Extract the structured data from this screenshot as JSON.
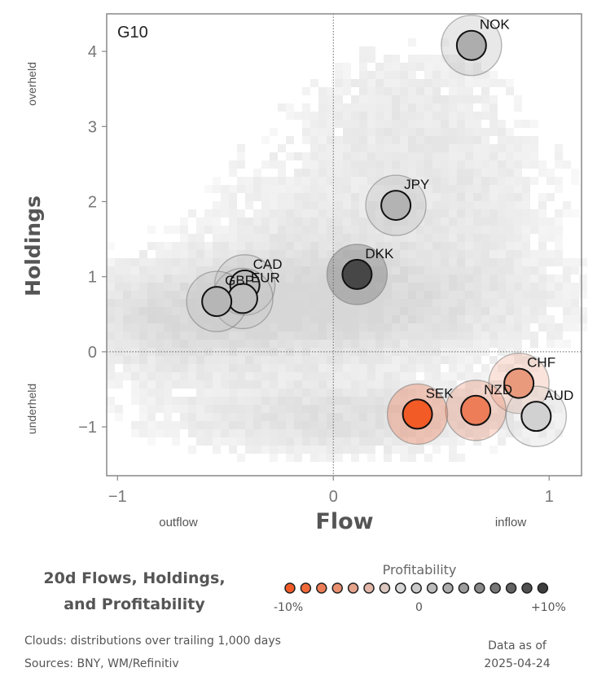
{
  "chart_data": {
    "type": "scatter",
    "panel_label": "G10",
    "xlabel": "Flow",
    "ylabel": "Holdings",
    "xlim": [
      -1.05,
      1.15
    ],
    "ylim": [
      -1.65,
      4.5
    ],
    "x_ticks": [
      {
        "value": -1,
        "label": "−1"
      },
      {
        "value": 0,
        "label": "0"
      },
      {
        "value": 1,
        "label": "1"
      }
    ],
    "y_ticks": [
      {
        "value": -1,
        "label": "−1"
      },
      {
        "value": 0,
        "label": "0"
      },
      {
        "value": 1,
        "label": "1"
      },
      {
        "value": 2,
        "label": "2"
      },
      {
        "value": 3,
        "label": "3"
      },
      {
        "value": 4,
        "label": "4"
      }
    ],
    "x_annotations": {
      "left": "outflow",
      "right": "inflow"
    },
    "y_annotations": {
      "top": "overheld",
      "bottom": "underheld"
    },
    "reference_lines": {
      "x": 0,
      "y": 0,
      "style": "dotted"
    },
    "background": "density heatmap of historical currency flow/holdings distributions (grey clouds)",
    "points": [
      {
        "label": "NOK",
        "x": 0.64,
        "y": 4.08,
        "color": "#adadad"
      },
      {
        "label": "JPY",
        "x": 0.29,
        "y": 1.95,
        "color": "#b3b3b3"
      },
      {
        "label": "DKK",
        "x": 0.11,
        "y": 1.03,
        "color": "#474747"
      },
      {
        "label": "CAD",
        "x": -0.41,
        "y": 0.89,
        "color": "#bbbbbb"
      },
      {
        "label": "EUR",
        "x": -0.42,
        "y": 0.71,
        "color": "#c0c0c0"
      },
      {
        "label": "GBP",
        "x": -0.54,
        "y": 0.67,
        "color": "#b6b6b6"
      },
      {
        "label": "CHF",
        "x": 0.86,
        "y": -0.42,
        "color": "#e99a7d"
      },
      {
        "label": "NZD",
        "x": 0.66,
        "y": -0.78,
        "color": "#ec7d58"
      },
      {
        "label": "AUD",
        "x": 0.94,
        "y": -0.86,
        "color": "#d1d1d1"
      },
      {
        "label": "SEK",
        "x": 0.39,
        "y": -0.83,
        "color": "#f25a26"
      }
    ]
  },
  "footer": {
    "title_line1": "20d Flows, Holdings,",
    "title_line2": "and Profitability",
    "note_clouds": "Clouds:  distributions over trailing 1,000 days",
    "note_sources": "Sources:  BNY, WM/Refinitiv",
    "asof_line1": "Data as of",
    "asof_line2": "2025-04-24"
  },
  "legend": {
    "title": "Profitability",
    "min_label": "-10%",
    "mid_label": "0",
    "max_label": "+10%",
    "colors": [
      "#f25a26",
      "#f26a3a",
      "#ee7d56",
      "#ea9070",
      "#e6a48c",
      "#e2b7a8",
      "#dcc8c0",
      "#d6d6d6",
      "#cacaca",
      "#bcbcbc",
      "#adadad",
      "#9c9c9c",
      "#8a8a8a",
      "#777777",
      "#636363",
      "#505050",
      "#3e3e3e"
    ]
  }
}
